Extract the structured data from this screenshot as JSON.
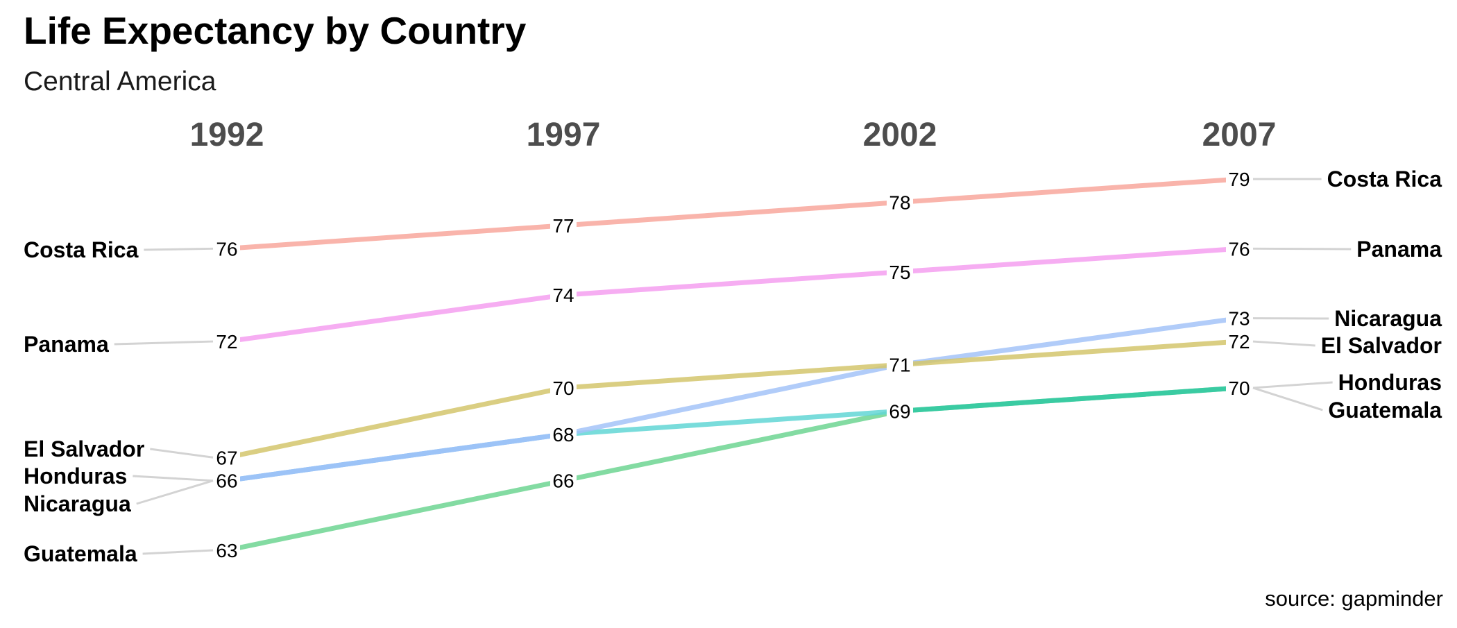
{
  "colors": {
    "Costa Rica": "#f8a79c",
    "Panama": "#f59ff0",
    "Nicaragua": "#a3c3f8",
    "El Salvador": "#d3c56c",
    "Honduras": "#5db4ee",
    "Guatemala": "#6dd592",
    "Honduras 1997-2002": "#62d6d5",
    "Honduras 2002-2007": "#2ec8a2",
    "leader": "#d3d3d3",
    "year_label": "#4d4d4d"
  },
  "chart_data": {
    "type": "line",
    "title": "Life Expectancy by Country",
    "subtitle": "Central America",
    "caption": "source: gapminder",
    "x": [
      "1992",
      "1997",
      "2002",
      "2007"
    ],
    "series": [
      {
        "name": "Costa Rica",
        "values": [
          76,
          77,
          78,
          79
        ]
      },
      {
        "name": "Panama",
        "values": [
          72,
          74,
          75,
          76
        ]
      },
      {
        "name": "Nicaragua",
        "values": [
          66,
          68,
          71,
          73
        ]
      },
      {
        "name": "El Salvador",
        "values": [
          67,
          70,
          71,
          72
        ]
      },
      {
        "name": "Honduras",
        "values": [
          66,
          68,
          69,
          70
        ]
      },
      {
        "name": "Guatemala",
        "values": [
          63,
          66,
          69,
          70
        ]
      }
    ],
    "left_labels": [
      "Costa Rica",
      "Panama",
      "El Salvador",
      "Honduras",
      "Nicaragua",
      "Guatemala"
    ],
    "right_labels": [
      "Costa Rica",
      "Panama",
      "Nicaragua",
      "El Salvador",
      "Honduras",
      "Guatemala"
    ],
    "left_value_labels": [
      "76",
      "72",
      "67",
      "66",
      "63"
    ],
    "mid1_value_labels": [
      "77",
      "74",
      "70",
      "68",
      "66"
    ],
    "mid2_value_labels": [
      "78",
      "75",
      "71",
      "69"
    ],
    "right_value_labels": [
      "79",
      "76",
      "73",
      "72",
      "70"
    ],
    "ylim": [
      63,
      79
    ],
    "grid": false,
    "legend": "none"
  }
}
